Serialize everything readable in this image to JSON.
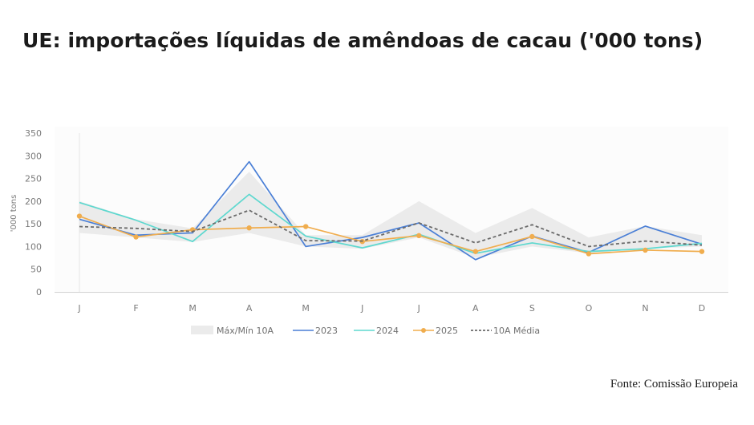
{
  "title": "UE: importações líquidas de amêndoas de cacau ('000 tons)",
  "source": "Fonte: Comissão Europeia",
  "chart_data": {
    "type": "line",
    "title": "UE: importações líquidas de amêndoas de cacau ('000 tons)",
    "xlabel": "",
    "ylabel": "'000 tons",
    "ylim": [
      0,
      350
    ],
    "yticks": [
      0,
      50,
      100,
      150,
      200,
      250,
      300,
      350
    ],
    "categories": [
      "J",
      "F",
      "M",
      "A",
      "M",
      "J",
      "J",
      "A",
      "S",
      "O",
      "N",
      "D"
    ],
    "band": {
      "name": "Máx/Mín 10A",
      "color": "#ebebeb",
      "max": [
        200,
        160,
        140,
        265,
        125,
        125,
        200,
        130,
        185,
        120,
        145,
        125
      ],
      "min": [
        130,
        120,
        110,
        130,
        100,
        95,
        120,
        75,
        100,
        85,
        95,
        100
      ]
    },
    "series": [
      {
        "name": "2023",
        "color": "#4a7fd6",
        "marker": false,
        "dashed": false,
        "values": [
          160,
          125,
          130,
          287,
          100,
          120,
          152,
          71,
          123,
          87,
          145,
          105
        ]
      },
      {
        "name": "2024",
        "color": "#5ed8cf",
        "marker": false,
        "dashed": false,
        "values": [
          197,
          158,
          111,
          215,
          123,
          97,
          127,
          85,
          108,
          89,
          95,
          107
        ]
      },
      {
        "name": "2025",
        "color": "#f0ad4e",
        "marker": true,
        "dashed": false,
        "values": [
          167,
          121,
          137,
          141,
          144,
          111,
          124,
          89,
          122,
          84,
          92,
          89
        ]
      },
      {
        "name": "10A Média",
        "color": "#6a6a6a",
        "marker": false,
        "dashed": true,
        "values": [
          144,
          140,
          133,
          180,
          113,
          112,
          152,
          108,
          148,
          100,
          112,
          103
        ]
      }
    ],
    "legend": [
      "Máx/Mín 10A",
      "2023",
      "2024",
      "2025",
      "10A Média"
    ],
    "legend_position": "bottom-center",
    "grid": false
  }
}
